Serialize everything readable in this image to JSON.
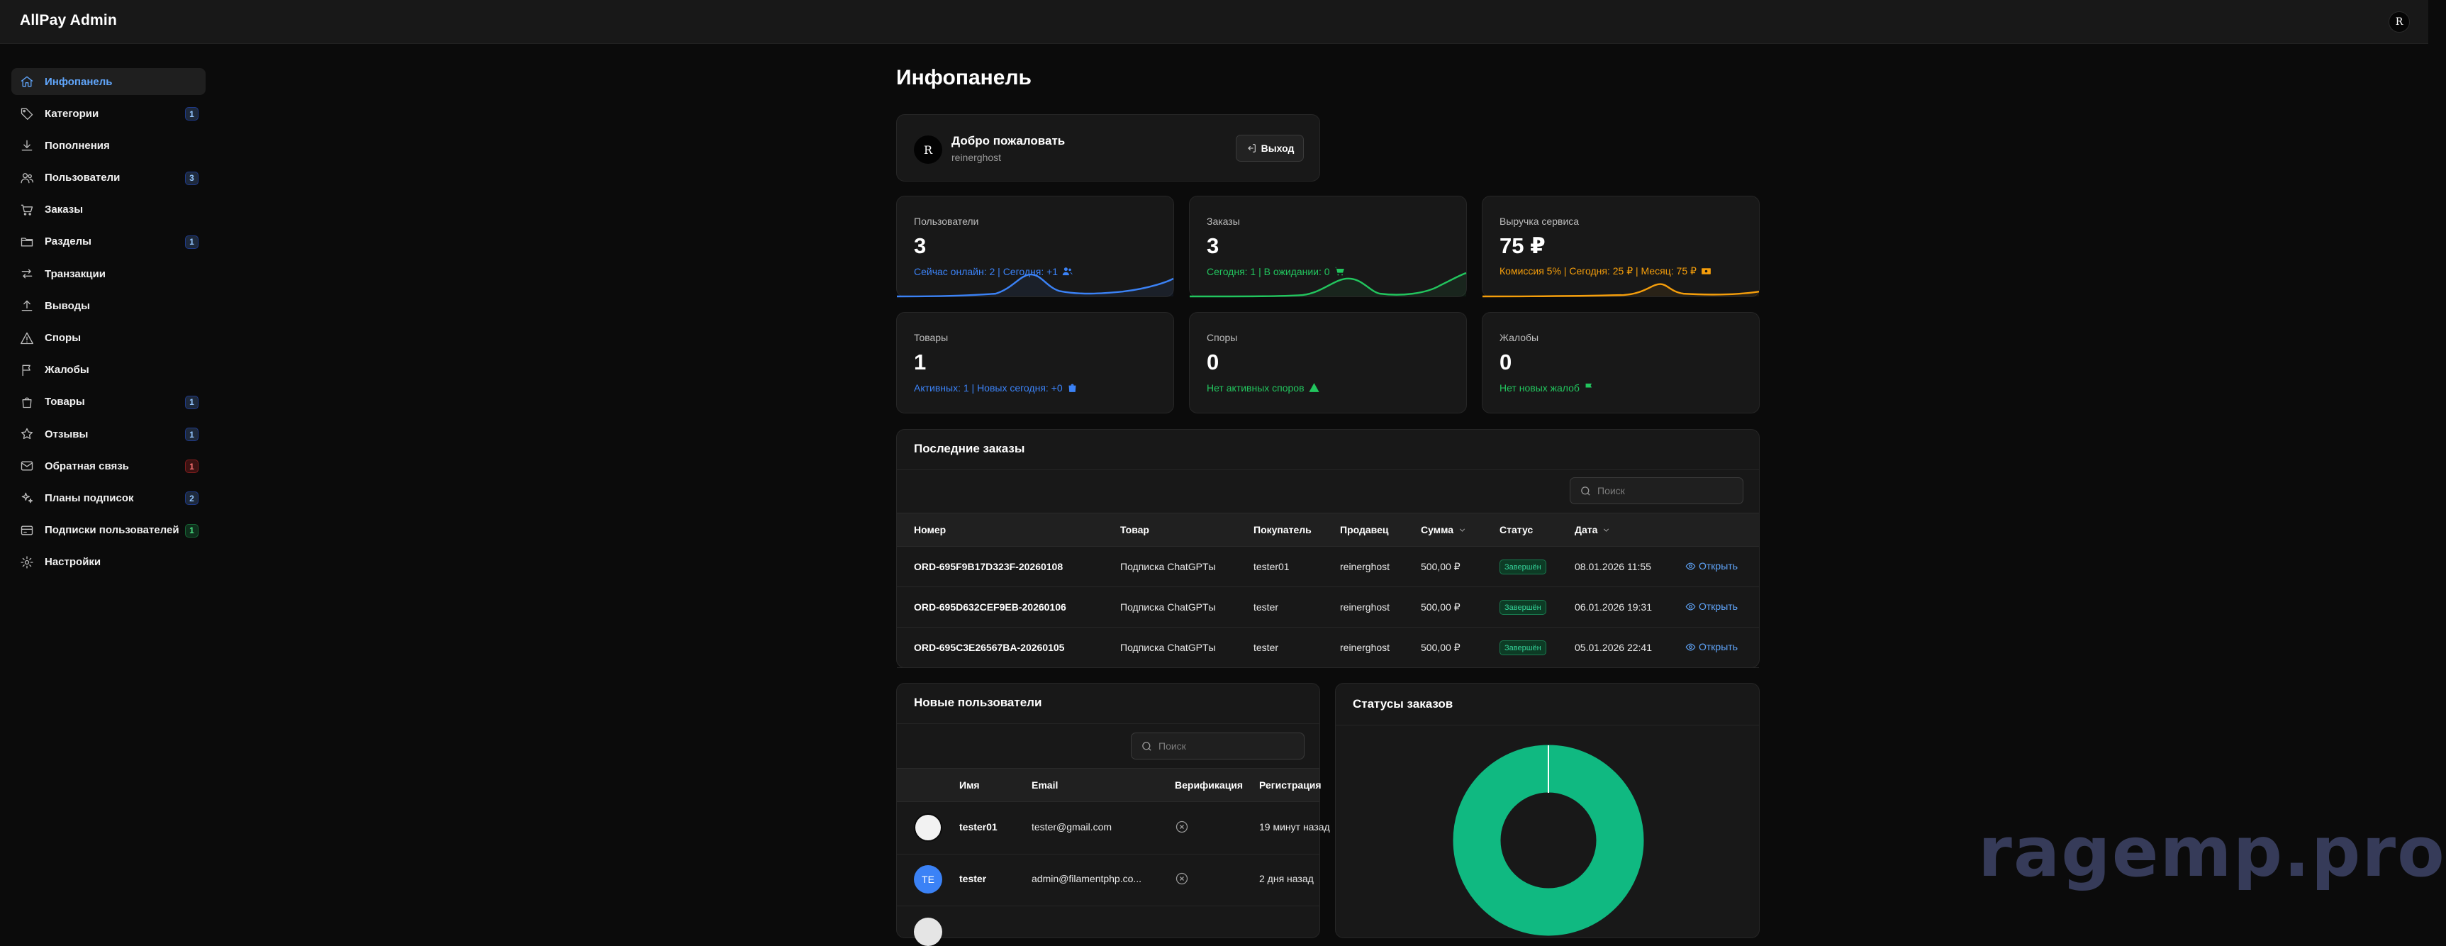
{
  "app": {
    "title": "AllPay Admin",
    "user_initial": "R"
  },
  "sidebar": {
    "items": [
      {
        "label": "Инфопанель",
        "icon": "home-icon",
        "active": true,
        "badge": ""
      },
      {
        "label": "Категории",
        "icon": "tag-icon",
        "badge": "1",
        "badge_color": "#1e293b"
      },
      {
        "label": "Пополнения",
        "icon": "download-icon",
        "badge": ""
      },
      {
        "label": "Пользователи",
        "icon": "users-icon",
        "badge": "3",
        "badge_color": "#1e293b"
      },
      {
        "label": "Заказы",
        "icon": "cart-icon",
        "badge": ""
      },
      {
        "label": "Разделы",
        "icon": "folder-icon",
        "badge": "1",
        "badge_color": "#1e293b"
      },
      {
        "label": "Транзакции",
        "icon": "arrows-icon",
        "badge": ""
      },
      {
        "label": "Выводы",
        "icon": "upload-icon",
        "badge": ""
      },
      {
        "label": "Споры",
        "icon": "warning-icon",
        "badge": ""
      },
      {
        "label": "Жалобы",
        "icon": "flag-icon",
        "badge": ""
      },
      {
        "label": "Товары",
        "icon": "bag-icon",
        "badge": "1",
        "badge_color": "#1e293b"
      },
      {
        "label": "Отзывы",
        "icon": "star-icon",
        "badge": "1",
        "badge_color": "#1e293b"
      },
      {
        "label": "Обратная связь",
        "icon": "mail-icon",
        "badge": "1",
        "badge_color": "#3b1212"
      },
      {
        "label": "Планы подписок",
        "icon": "sparkles-icon",
        "badge": "2",
        "badge_color": "#1e293b"
      },
      {
        "label": "Подписки пользователей",
        "icon": "card-icon",
        "badge": "1",
        "badge_color": "#0f2e1c"
      },
      {
        "label": "Настройки",
        "icon": "gear-icon",
        "badge": ""
      }
    ]
  },
  "page": {
    "title": "Инфопанель"
  },
  "welcome": {
    "title": "Добро пожаловать",
    "username": "reinerghost",
    "avatar": "R",
    "logout_label": "Выход"
  },
  "stats": [
    {
      "label": "Пользователи",
      "value": "3",
      "desc": "Сейчас онлайн: 2 | Сегодня: +1",
      "icon": "users-icon",
      "color": "#3b82f6"
    },
    {
      "label": "Заказы",
      "value": "3",
      "desc": "Сегодня: 1 | В ожидании: 0",
      "icon": "cart-icon",
      "color": "#22c55e"
    },
    {
      "label": "Выручка сервиса",
      "value": "75 ₽",
      "desc": "Комиссия 5% | Сегодня: 25 ₽ | Месяц: 75 ₽",
      "icon": "cash-icon",
      "color": "#f59e0b"
    },
    {
      "label": "Товары",
      "value": "1",
      "desc": "Активных: 1 | Новых сегодня: +0",
      "icon": "bag-icon",
      "color": "#3b82f6"
    },
    {
      "label": "Споры",
      "value": "0",
      "desc": "Нет активных споров",
      "icon": "warning-icon",
      "color": "#22c55e"
    },
    {
      "label": "Жалобы",
      "value": "0",
      "desc": "Нет новых жалоб",
      "icon": "flag-icon",
      "color": "#22c55e"
    }
  ],
  "orders": {
    "title": "Последние заказы",
    "search_placeholder": "Поиск",
    "columns": [
      "Номер",
      "Товар",
      "Покупатель",
      "Продавец",
      "Сумма",
      "Статус",
      "Дата"
    ],
    "rows": [
      {
        "number": "ORD-695F9B17D323F-20260108",
        "product": "Подписка ChatGPTы",
        "buyer": "tester01",
        "seller": "reinerghost",
        "sum": "500,00 ₽",
        "status": "Завершён",
        "date": "08.01.2026 11:55",
        "action": "Открыть"
      },
      {
        "number": "ORD-695D632CEF9EB-20260106",
        "product": "Подписка ChatGPTы",
        "buyer": "tester",
        "seller": "reinerghost",
        "sum": "500,00 ₽",
        "status": "Завершён",
        "date": "06.01.2026 19:31",
        "action": "Открыть"
      },
      {
        "number": "ORD-695C3E26567BA-20260105",
        "product": "Подписка ChatGPTы",
        "buyer": "tester",
        "seller": "reinerghost",
        "sum": "500,00 ₽",
        "status": "Завершён",
        "date": "05.01.2026 22:41",
        "action": "Открыть"
      }
    ]
  },
  "users": {
    "title": "Новые пользователи",
    "search_placeholder": "Поиск",
    "columns": [
      "Имя",
      "Email",
      "Верификация",
      "Регистрация"
    ],
    "rows": [
      {
        "name": "tester01",
        "email": "tester@gmail.com",
        "registered": "19 минут назад",
        "avatar": ""
      },
      {
        "name": "tester",
        "email": "admin@filamentphp.co...",
        "registered": "2 дня назад",
        "avatar": "TE"
      }
    ]
  },
  "statuses": {
    "title": "Статусы заказов",
    "chart_color": "#10b981"
  },
  "watermark": "ragemp.pro"
}
